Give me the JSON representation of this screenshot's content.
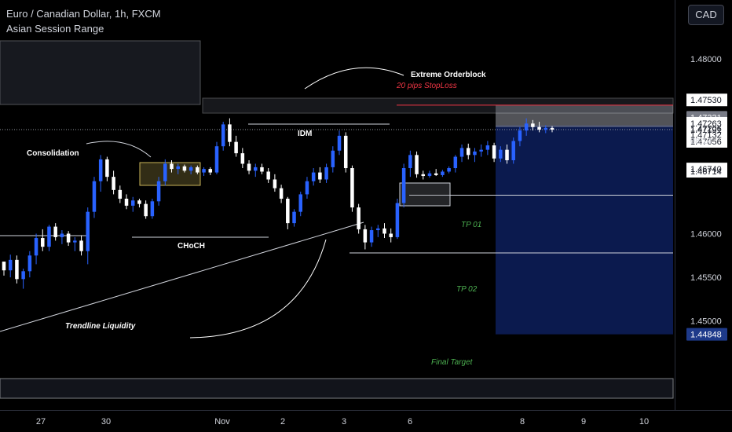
{
  "header": {
    "title": "Euro / Canadian Dollar, 1h, FXCM",
    "subtitle": "Asian Session Range",
    "currency_button": "CAD"
  },
  "colors": {
    "background": "#000000",
    "bull": "#2962ff",
    "bear": "#ffffff",
    "target_zone": "#0d1f5c",
    "stop_zone": "#9598a1",
    "stoploss_line": "#f23645",
    "tp_label": "#4caf50",
    "consolidation_box": "#c9b458",
    "price_tag": "#1e3a8a"
  },
  "chart_data": {
    "type": "candlestick",
    "ylim": [
      1.44,
      1.4835
    ],
    "price_axis_labels": [
      "1.48000",
      "1.47530",
      "1.47331",
      "1.47263",
      "1.47206",
      "1.47191",
      "1.47132",
      "1.47056",
      "1.46740",
      "1.46714",
      "1.46000",
      "1.45500",
      "1.45000",
      "1.44848"
    ],
    "price_axis_values": [
      1.48,
      1.4753,
      1.47331,
      1.47263,
      1.47206,
      1.47191,
      1.47132,
      1.47056,
      1.4674,
      1.46714,
      1.46,
      1.455,
      1.45,
      1.44848
    ],
    "highlighted_labels": [
      "1.47331",
      "1.44848"
    ],
    "countdown": "08:14",
    "time_labels": [
      "27",
      "30",
      "Nov",
      "2",
      "3",
      "6",
      "8",
      "9",
      "10"
    ],
    "annotations": {
      "extreme_orderblock": "Extreme Orderblock",
      "stoploss": "20 pips StopLoss",
      "idm": "IDM",
      "consolidation": "Consolidation",
      "choch": "CHoCH",
      "trendline_liquidity": "Trendline Liquidity",
      "tp1": "TP 01",
      "tp2": "TP 02",
      "final_target": "Final Target"
    },
    "levels": {
      "stoploss": 1.4747,
      "orderblock_top": 1.473,
      "orderblock_bottom": 1.4722,
      "current_price": 1.47191,
      "idm": 1.4721,
      "tp1": 1.4644,
      "tp2": 1.4578,
      "final_target": 1.44848,
      "choch": 1.4617,
      "left_support": 1.4619
    },
    "candles": [
      [
        1.4568,
        1.4568,
        1.4552,
        1.4558
      ],
      [
        1.4558,
        1.4576,
        1.455,
        1.457
      ],
      [
        1.457,
        1.4575,
        1.4543,
        1.4548
      ],
      [
        1.4548,
        1.456,
        1.4537,
        1.4557
      ],
      [
        1.4557,
        1.458,
        1.455,
        1.4575
      ],
      [
        1.4575,
        1.46,
        1.4565,
        1.4595
      ],
      [
        1.4595,
        1.4605,
        1.458,
        1.4585
      ],
      [
        1.4585,
        1.461,
        1.458,
        1.4608
      ],
      [
        1.4608,
        1.4612,
        1.4592,
        1.4596
      ],
      [
        1.4596,
        1.4604,
        1.4588,
        1.46
      ],
      [
        1.46,
        1.4603,
        1.4586,
        1.459
      ],
      [
        1.459,
        1.4596,
        1.458,
        1.4592
      ],
      [
        1.4592,
        1.4598,
        1.4575,
        1.458
      ],
      [
        1.458,
        1.463,
        1.4565,
        1.4625
      ],
      [
        1.4625,
        1.4665,
        1.4618,
        1.466
      ],
      [
        1.466,
        1.469,
        1.4648,
        1.4685
      ],
      [
        1.4685,
        1.4688,
        1.466,
        1.4665
      ],
      [
        1.4665,
        1.4672,
        1.4645,
        1.465
      ],
      [
        1.465,
        1.4655,
        1.4635,
        1.464
      ],
      [
        1.464,
        1.4645,
        1.4628,
        1.4632
      ],
      [
        1.4632,
        1.4642,
        1.4625,
        1.4638
      ],
      [
        1.4638,
        1.464,
        1.463,
        1.4634
      ],
      [
        1.4634,
        1.4638,
        1.4617,
        1.462
      ],
      [
        1.462,
        1.464,
        1.4617,
        1.4637
      ],
      [
        1.4637,
        1.4665,
        1.4632,
        1.466
      ],
      [
        1.466,
        1.4685,
        1.4655,
        1.468
      ],
      [
        1.468,
        1.4684,
        1.467,
        1.4674
      ],
      [
        1.4674,
        1.468,
        1.4668,
        1.4677
      ],
      [
        1.4677,
        1.4679,
        1.467,
        1.4672
      ],
      [
        1.4672,
        1.4678,
        1.4668,
        1.4676
      ],
      [
        1.4676,
        1.4678,
        1.4668,
        1.467
      ],
      [
        1.467,
        1.4676,
        1.4666,
        1.4674
      ],
      [
        1.4674,
        1.4676,
        1.4667,
        1.467
      ],
      [
        1.467,
        1.4705,
        1.4668,
        1.47
      ],
      [
        1.47,
        1.4728,
        1.4695,
        1.4725
      ],
      [
        1.4725,
        1.4732,
        1.47,
        1.4705
      ],
      [
        1.4705,
        1.4712,
        1.4688,
        1.4692
      ],
      [
        1.4692,
        1.4698,
        1.4675,
        1.468
      ],
      [
        1.468,
        1.4684,
        1.4668,
        1.4672
      ],
      [
        1.4672,
        1.468,
        1.4665,
        1.4676
      ],
      [
        1.4676,
        1.468,
        1.4668,
        1.4671
      ],
      [
        1.4671,
        1.4675,
        1.4658,
        1.4662
      ],
      [
        1.4662,
        1.4668,
        1.4648,
        1.4652
      ],
      [
        1.4652,
        1.4656,
        1.4635,
        1.464
      ],
      [
        1.464,
        1.4642,
        1.4605,
        1.4612
      ],
      [
        1.4612,
        1.4628,
        1.4608,
        1.4625
      ],
      [
        1.4625,
        1.4648,
        1.462,
        1.4645
      ],
      [
        1.4645,
        1.4665,
        1.464,
        1.466
      ],
      [
        1.466,
        1.4675,
        1.4655,
        1.467
      ],
      [
        1.467,
        1.4676,
        1.4658,
        1.4662
      ],
      [
        1.4662,
        1.468,
        1.4658,
        1.4676
      ],
      [
        1.4676,
        1.47,
        1.467,
        1.4695
      ],
      [
        1.4695,
        1.4718,
        1.469,
        1.4712
      ],
      [
        1.4712,
        1.4716,
        1.467,
        1.4675
      ],
      [
        1.4675,
        1.4678,
        1.4625,
        1.463
      ],
      [
        1.463,
        1.4634,
        1.46,
        1.4605
      ],
      [
        1.4605,
        1.461,
        1.4582,
        1.459
      ],
      [
        1.459,
        1.4608,
        1.4585,
        1.4604
      ],
      [
        1.4604,
        1.461,
        1.4596,
        1.4606
      ],
      [
        1.4606,
        1.4612,
        1.4595,
        1.46
      ],
      [
        1.46,
        1.4606,
        1.459,
        1.4596
      ],
      [
        1.4596,
        1.464,
        1.4594,
        1.4635
      ],
      [
        1.4635,
        1.468,
        1.463,
        1.4675
      ],
      [
        1.4675,
        1.4695,
        1.4665,
        1.469
      ],
      [
        1.469,
        1.4694,
        1.4664,
        1.4668
      ],
      [
        1.4668,
        1.4672,
        1.4662,
        1.4666
      ],
      [
        1.4666,
        1.4672,
        1.4664,
        1.4669
      ],
      [
        1.4669,
        1.4674,
        1.4666,
        1.4667
      ],
      [
        1.4667,
        1.4673,
        1.4665,
        1.4671
      ],
      [
        1.4671,
        1.4677,
        1.4669,
        1.4675
      ],
      [
        1.4675,
        1.469,
        1.467,
        1.4688
      ],
      [
        1.4688,
        1.4702,
        1.4682,
        1.4698
      ],
      [
        1.4698,
        1.4703,
        1.4685,
        1.469
      ],
      [
        1.469,
        1.4698,
        1.4682,
        1.4694
      ],
      [
        1.4694,
        1.4702,
        1.4688,
        1.4696
      ],
      [
        1.4696,
        1.4706,
        1.469,
        1.4701
      ],
      [
        1.4701,
        1.4704,
        1.4682,
        1.4686
      ],
      [
        1.4686,
        1.47,
        1.4682,
        1.4696
      ],
      [
        1.4696,
        1.4702,
        1.468,
        1.4684
      ],
      [
        1.4684,
        1.471,
        1.468,
        1.4706
      ],
      [
        1.4706,
        1.4722,
        1.47,
        1.4718
      ],
      [
        1.4718,
        1.4732,
        1.4712,
        1.4726
      ],
      [
        1.4726,
        1.473,
        1.4718,
        1.4722
      ],
      [
        1.4722,
        1.4728,
        1.4716,
        1.4719
      ],
      [
        1.4719,
        1.4724,
        1.4715,
        1.4721
      ],
      [
        1.4721,
        1.4723,
        1.4716,
        1.4719
      ]
    ]
  }
}
